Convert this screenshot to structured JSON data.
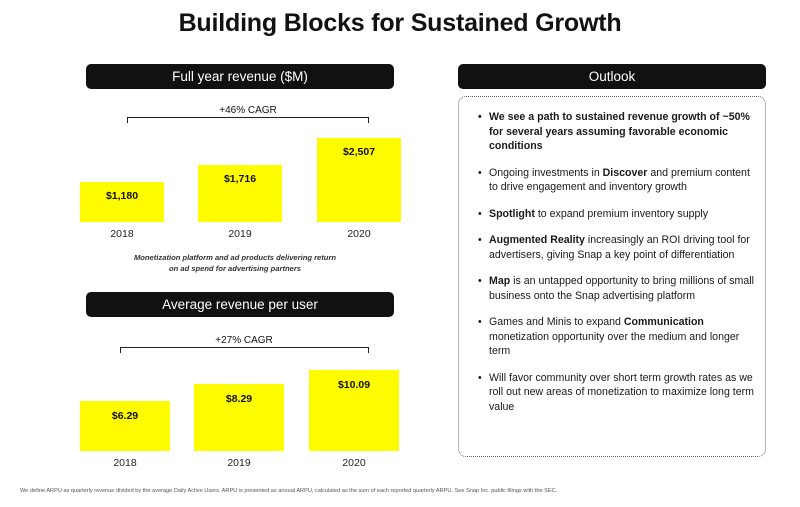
{
  "title": "Building Blocks for Sustained Growth",
  "colors": {
    "bar": "#fffc00",
    "header_bg": "#111111",
    "header_fg": "#ffffff"
  },
  "chart_data": [
    {
      "type": "bar",
      "title": "Full year revenue ($M)",
      "categories": [
        "2018",
        "2019",
        "2020"
      ],
      "values": [
        1180,
        1716,
        2507
      ],
      "value_labels": [
        "$1,180",
        "$1,716",
        "$2,507"
      ],
      "annotation": "+46% CAGR",
      "ylim": [
        0,
        2507
      ],
      "xlabel": "",
      "ylabel": ""
    },
    {
      "type": "bar",
      "title": "Average revenue per user",
      "categories": [
        "2018",
        "2019",
        "2020"
      ],
      "values": [
        6.29,
        8.29,
        10.09
      ],
      "value_labels": [
        "$6.29",
        "$8.29",
        "$10.09"
      ],
      "annotation": "+27% CAGR",
      "ylim": [
        0,
        10.09
      ],
      "xlabel": "",
      "ylabel": ""
    }
  ],
  "note": "Monetization platform and ad products delivering return on ad spend for advertising partners",
  "outlook": {
    "header": "Outlook",
    "bullets": [
      {
        "pre": "We see a path to sustained revenue growth of ~50% for several years assuming favorable economic conditions",
        "bold": "",
        "post": ""
      },
      {
        "pre": "Ongoing investments in ",
        "bold": "Discover",
        "post": " and premium content to drive engagement and inventory growth"
      },
      {
        "pre": "",
        "bold": "Spotlight",
        "post": " to expand premium inventory supply"
      },
      {
        "pre": "",
        "bold": "Augmented Reality",
        "post": " increasingly an ROI driving tool for advertisers, giving Snap a key point of differentiation"
      },
      {
        "pre": "",
        "bold": "Map",
        "post": " is an untapped opportunity to bring millions of small business onto the Snap advertising platform"
      },
      {
        "pre": "Games and Minis to expand ",
        "bold": "Communication",
        "post": " monetization opportunity over the medium and longer term"
      },
      {
        "pre": "Will favor community over short term growth rates as we roll out new areas of monetization to maximize long term value",
        "bold": "",
        "post": ""
      }
    ]
  },
  "footnote": "We define ARPU as quarterly revenue divided by the average Daily Active Users. ARPU is presented as annual ARPU, calculated as the sum of each reported quarterly ARPU. See Snap Inc. public filings with the SEC."
}
